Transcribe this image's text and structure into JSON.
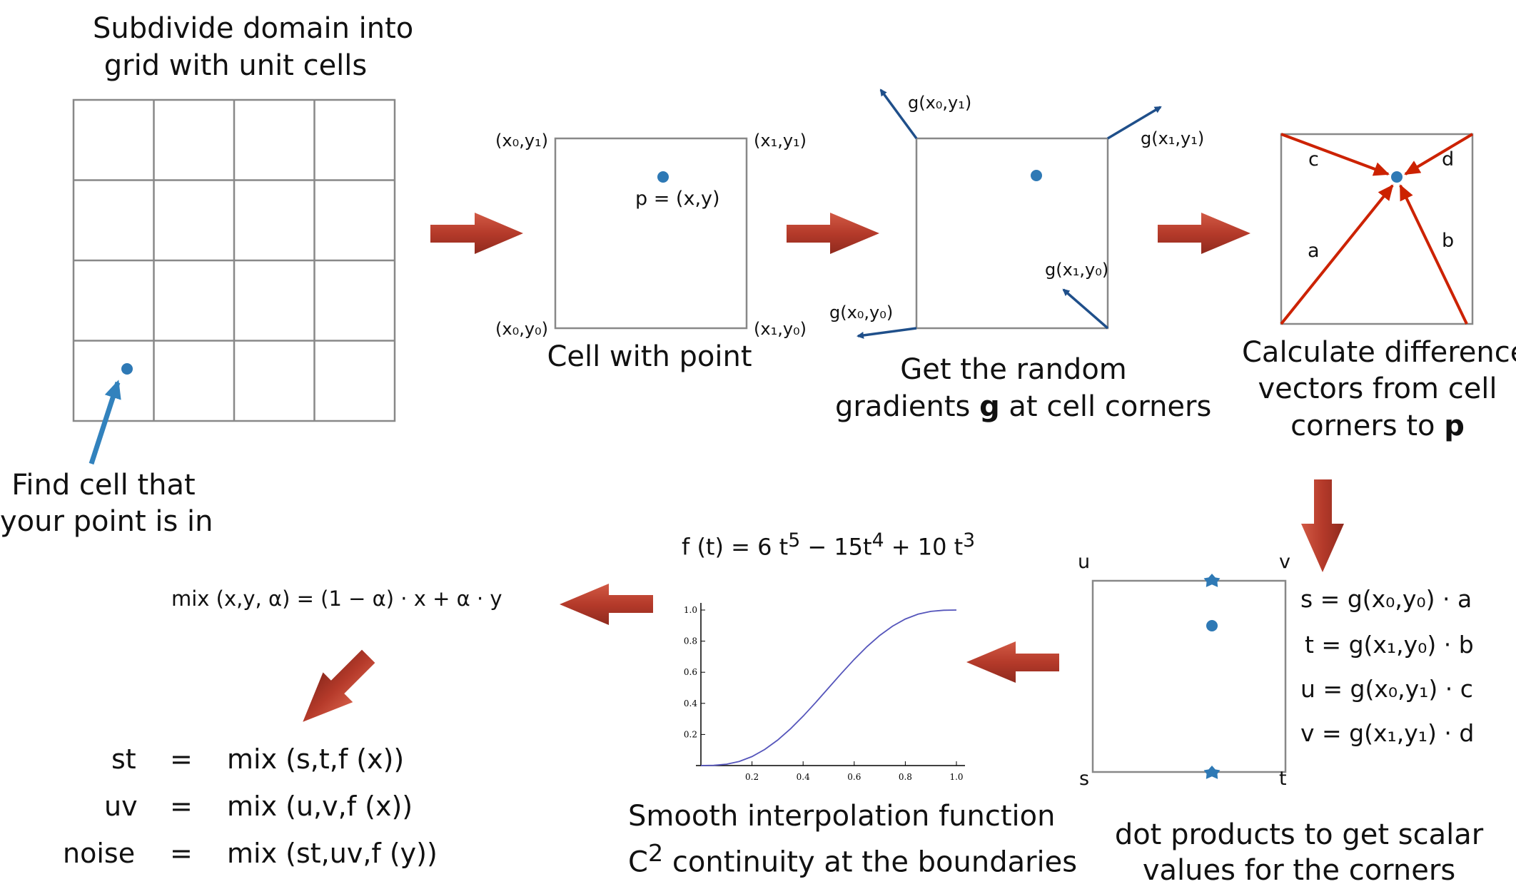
{
  "step1": {
    "title_line1": "Subdivide domain into",
    "title_line2": "grid with unit cells",
    "note_line1": "Find cell that",
    "note_line2": "your point is in"
  },
  "step2": {
    "corner_x0y1": "(x₀,y₁)",
    "corner_x1y1": "(x₁,y₁)",
    "corner_x0y0": "(x₀,y₀)",
    "corner_x1y0": "(x₁,y₀)",
    "point_label": "p = (x,y)",
    "caption": "Cell with point"
  },
  "step3": {
    "g_x0y1": "g(x₀,y₁)",
    "g_x1y1": "g(x₁,y₁)",
    "g_x1y0": "g(x₁,y₀)",
    "g_x0y0": "g(x₀,y₀)",
    "caption_line1": "Get the random",
    "caption_line2_pre": "gradients ",
    "caption_line2_bold": "g",
    "caption_line2_post": " at cell corners"
  },
  "step4": {
    "label_c": "c",
    "label_d": "d",
    "label_a": "a",
    "label_b": "b",
    "caption_line1": "Calculate difference",
    "caption_line2": "vectors from cell",
    "caption_line3_pre": "corners to ",
    "caption_line3_bold": "p"
  },
  "step5": {
    "label_u": "u",
    "label_v": "v",
    "label_s": "s",
    "label_t": "t",
    "eq_s": "s = g(x₀,y₀) · a",
    "eq_t": "t = g(x₁,y₀) · b",
    "eq_u": "u = g(x₀,y₁) · c",
    "eq_v": "v = g(x₁,y₁) · d",
    "caption_line1": "dot products to get scalar",
    "caption_line2": "values for the corners"
  },
  "step6": {
    "formula_html": "f (t) = 6 t<sup>5</sup> − 15t<sup>4</sup> + 10 t<sup>3</sup>",
    "caption_line1": "Smooth interpolation function",
    "caption_line2_html": "C<sup>2</sup> continuity at the boundaries"
  },
  "chart_data": {
    "type": "line",
    "x": [
      0,
      0.05,
      0.1,
      0.15,
      0.2,
      0.25,
      0.3,
      0.35,
      0.4,
      0.45,
      0.5,
      0.55,
      0.6,
      0.65,
      0.7,
      0.75,
      0.8,
      0.85,
      0.9,
      0.95,
      1.0
    ],
    "series": [
      {
        "values": [
          0,
          0.0012,
          0.0086,
          0.0266,
          0.0579,
          0.1035,
          0.1631,
          0.2352,
          0.3174,
          0.4069,
          0.5,
          0.5931,
          0.6826,
          0.7648,
          0.8369,
          0.8965,
          0.9421,
          0.9734,
          0.9914,
          0.9988,
          1.0
        ]
      }
    ],
    "xticks": [
      "0.2",
      "0.4",
      "0.6",
      "0.8",
      "1.0"
    ],
    "yticks": [
      "0.2",
      "0.4",
      "0.6",
      "0.8",
      "1.0"
    ],
    "xlim": [
      0,
      1.0
    ],
    "ylim": [
      0,
      1.0
    ],
    "line_color": "#5555bb",
    "grid": false
  },
  "step7": {
    "mix_formula": "mix (x,y, α) = (1 − α) · x + α · y",
    "rows": [
      {
        "lhs": "st",
        "eq": "=",
        "rhs": "mix (s,t,f (x))"
      },
      {
        "lhs": "uv",
        "eq": "=",
        "rhs": "mix (u,v,f (x))"
      },
      {
        "lhs": "noise",
        "eq": "=",
        "rhs": "mix (st,uv,f (y))"
      }
    ]
  },
  "colors": {
    "grid_line": "#888888",
    "point": "#2e79b5",
    "gradient_arrow": "#1f4f8a",
    "diff_arrow": "#cc2200",
    "flow_arrow": "#b83c2c",
    "find_arrow": "#3282bd"
  }
}
